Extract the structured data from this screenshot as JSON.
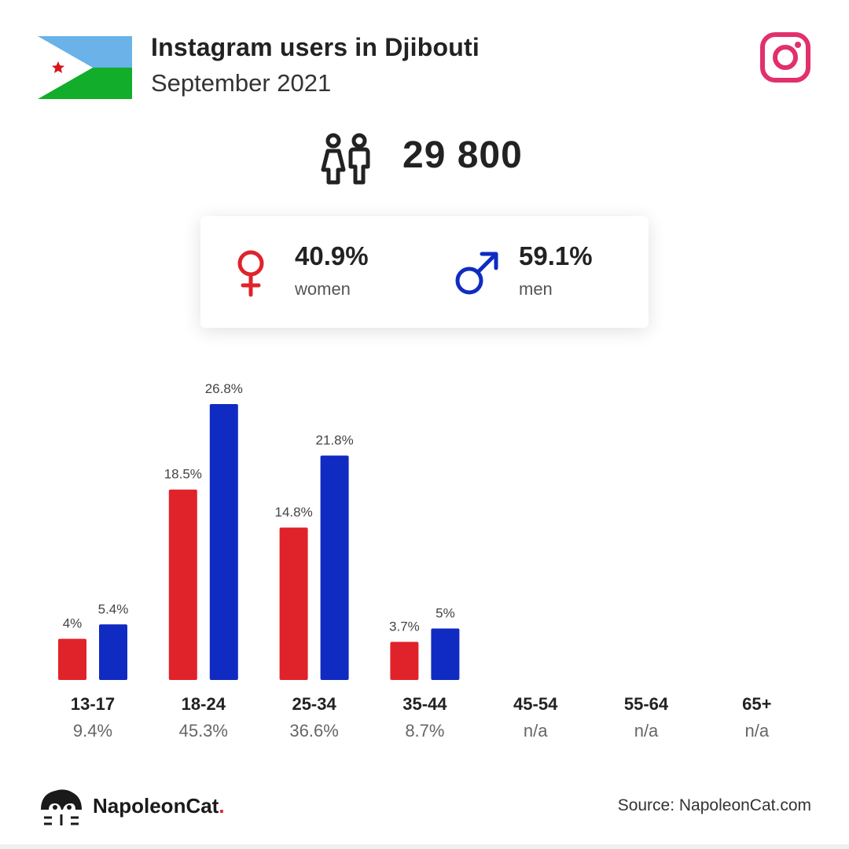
{
  "header": {
    "title": "Instagram users in Djibouti",
    "subtitle": "September 2021",
    "flag_colors": {
      "top": "#6ab2e7",
      "bottom": "#12ad2b",
      "triangle": "#ffffff",
      "star": "#d7141a"
    },
    "platform_icon": "instagram-icon",
    "platform_color": "#e1306c"
  },
  "total": {
    "icon": "users-icon",
    "value": "29 800"
  },
  "gender": {
    "women": {
      "icon": "female-symbol-icon",
      "pct": "40.9%",
      "label": "women",
      "color": "#e0232b"
    },
    "men": {
      "icon": "male-symbol-icon",
      "pct": "59.1%",
      "label": "men",
      "color": "#102bc2"
    }
  },
  "chart_data": {
    "type": "bar",
    "categories": [
      "13-17",
      "18-24",
      "25-34",
      "35-44",
      "45-54",
      "55-64",
      "65+"
    ],
    "group_shares": [
      "9.4%",
      "45.3%",
      "36.6%",
      "8.7%",
      "n/a",
      "n/a",
      "n/a"
    ],
    "series": [
      {
        "color": "#e0232b",
        "values": [
          4,
          18.5,
          14.8,
          3.7,
          null,
          null,
          null
        ],
        "labels": [
          "4%",
          "18.5%",
          "14.8%",
          "3.7%",
          "",
          "",
          ""
        ]
      },
      {
        "color": "#102bc2",
        "values": [
          5.4,
          26.8,
          21.8,
          5,
          null,
          null,
          null
        ],
        "labels": [
          "5.4%",
          "26.8%",
          "21.8%",
          "5%",
          "",
          "",
          ""
        ]
      }
    ],
    "ylim": [
      0,
      26.8
    ],
    "grid": false
  },
  "footer": {
    "brand": "NapoleonCat",
    "brand_dot": ".",
    "logo_icon": "napoleoncat-logo-icon",
    "source": "Source: NapoleonCat.com"
  }
}
